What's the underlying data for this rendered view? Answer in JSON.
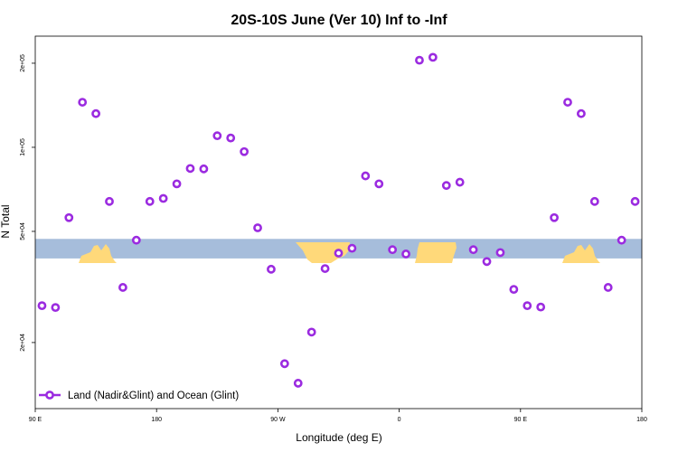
{
  "chart_data": {
    "type": "scatter",
    "title": "20S-10S June (Ver 10)   Inf to -Inf",
    "xlabel": "Longitude (deg E)",
    "ylabel": "N Total",
    "x_ticks": [
      {
        "value": 90,
        "label": "90 E"
      },
      {
        "value": 180,
        "label": "180"
      },
      {
        "value": 270,
        "label": "90 W"
      },
      {
        "value": 360,
        "label": "0"
      },
      {
        "value": 450,
        "label": "90 E"
      },
      {
        "value": 540,
        "label": "180"
      }
    ],
    "xlim": [
      90,
      540
    ],
    "y_scale": "log",
    "y_ticks": [
      {
        "value": 20000,
        "label": "2e+04"
      },
      {
        "value": 50000,
        "label": "5e+04"
      },
      {
        "value": 100000,
        "label": "1e+05"
      },
      {
        "value": 200000,
        "label": "2e+05"
      }
    ],
    "ylim": [
      11600,
      250000
    ],
    "grid": false,
    "legend_position": "bottom-left",
    "colors": {
      "marker": "#9b2be0",
      "ocean": "#a6bddb",
      "land": "#ffd97a"
    },
    "series": [
      {
        "name": "Land (Nadir&Glint) and Ocean (Glint)",
        "x": [
          95,
          105,
          115,
          125,
          135,
          145,
          155,
          165,
          175,
          185,
          195,
          205,
          215,
          225,
          235,
          245,
          255,
          265,
          275,
          285,
          295,
          305,
          315,
          325,
          335,
          345,
          355,
          365,
          375,
          385,
          395,
          405,
          415,
          425,
          435,
          445,
          455,
          465,
          475,
          485,
          495,
          505,
          515,
          525,
          535
        ],
        "y": [
          27100,
          26700,
          56000,
          145000,
          132000,
          64000,
          31500,
          46500,
          64000,
          65600,
          74000,
          84000,
          83700,
          110000,
          108000,
          96500,
          51500,
          36600,
          16800,
          14300,
          21800,
          36800,
          41800,
          43500,
          79000,
          74000,
          43000,
          41500,
          205000,
          210000,
          73000,
          75000,
          43000,
          39000,
          42000,
          31000,
          27100,
          26800,
          56000,
          145000,
          132000,
          64000,
          31500,
          46500,
          64000
        ]
      }
    ],
    "map_strip": {
      "y_range": [
        40000,
        47000
      ]
    }
  }
}
